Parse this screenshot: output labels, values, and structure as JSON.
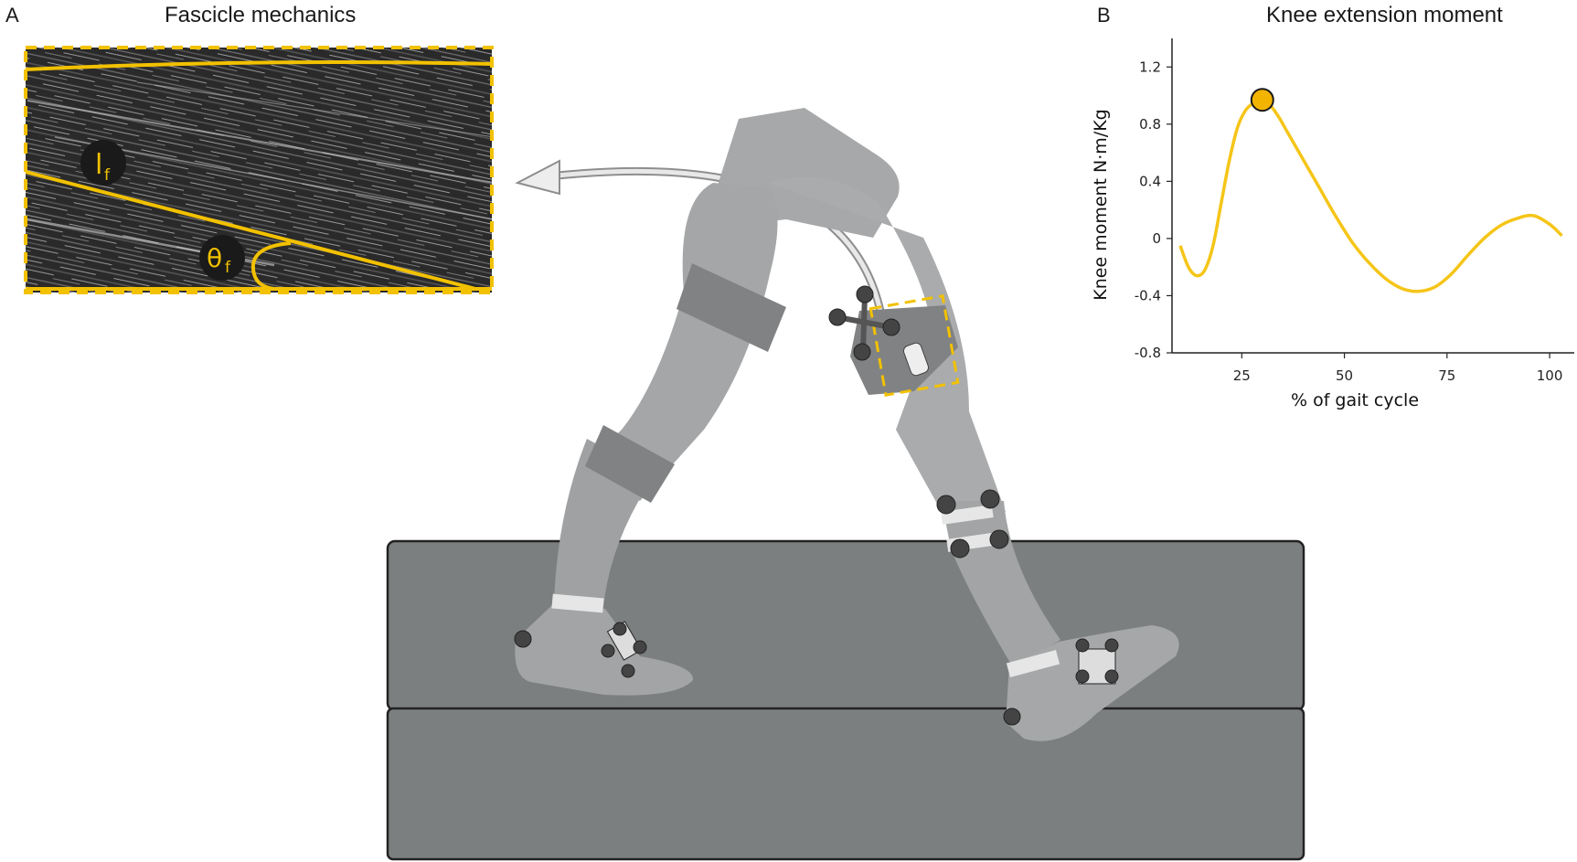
{
  "panel_a": {
    "letter": "A",
    "title": "Fascicle mechanics",
    "length_symbol": "l",
    "length_subscript": "f",
    "angle_symbol": "θ",
    "angle_subscript": "f"
  },
  "panel_b": {
    "letter": "B",
    "title": "Knee extension moment"
  },
  "colors": {
    "accent": "#f2c100",
    "curve": "#f5c518",
    "body": "#a8aaab",
    "treadmill": "#7c7f80",
    "marker": "#444444"
  },
  "chart_data": {
    "type": "line",
    "title": "Knee extension moment",
    "xlabel": "% of gait cycle",
    "ylabel": "Knee moment N·m/Kg",
    "xlim": [
      8,
      106
    ],
    "ylim": [
      -0.8,
      1.4
    ],
    "xticks": [
      25,
      50,
      75,
      100
    ],
    "xtick_labels": [
      "25",
      "50",
      "75",
      "100"
    ],
    "yticks": [
      1.2,
      0.8,
      0.4,
      0,
      -0.4,
      -0.8
    ],
    "ytick_labels": [
      "1.2",
      "0.8",
      "0.4",
      "0",
      "-0.4",
      "-0.8"
    ],
    "grid": false,
    "series": [
      {
        "x": [
          10,
          12,
          14,
          16,
          18,
          20,
          22,
          24,
          26,
          28,
          30,
          32,
          34,
          36,
          38,
          40,
          44,
          48,
          52,
          56,
          60,
          64,
          68,
          72,
          76,
          80,
          84,
          88,
          92,
          96,
          100,
          103
        ],
        "values": [
          -0.05,
          -0.2,
          -0.26,
          -0.22,
          -0.05,
          0.25,
          0.55,
          0.78,
          0.9,
          0.95,
          0.97,
          0.93,
          0.85,
          0.75,
          0.65,
          0.55,
          0.35,
          0.15,
          -0.03,
          -0.17,
          -0.28,
          -0.35,
          -0.37,
          -0.34,
          -0.25,
          -0.12,
          0.0,
          0.09,
          0.14,
          0.16,
          0.1,
          0.02
        ]
      }
    ],
    "highlight_point": {
      "x": 30,
      "y": 0.97
    }
  }
}
